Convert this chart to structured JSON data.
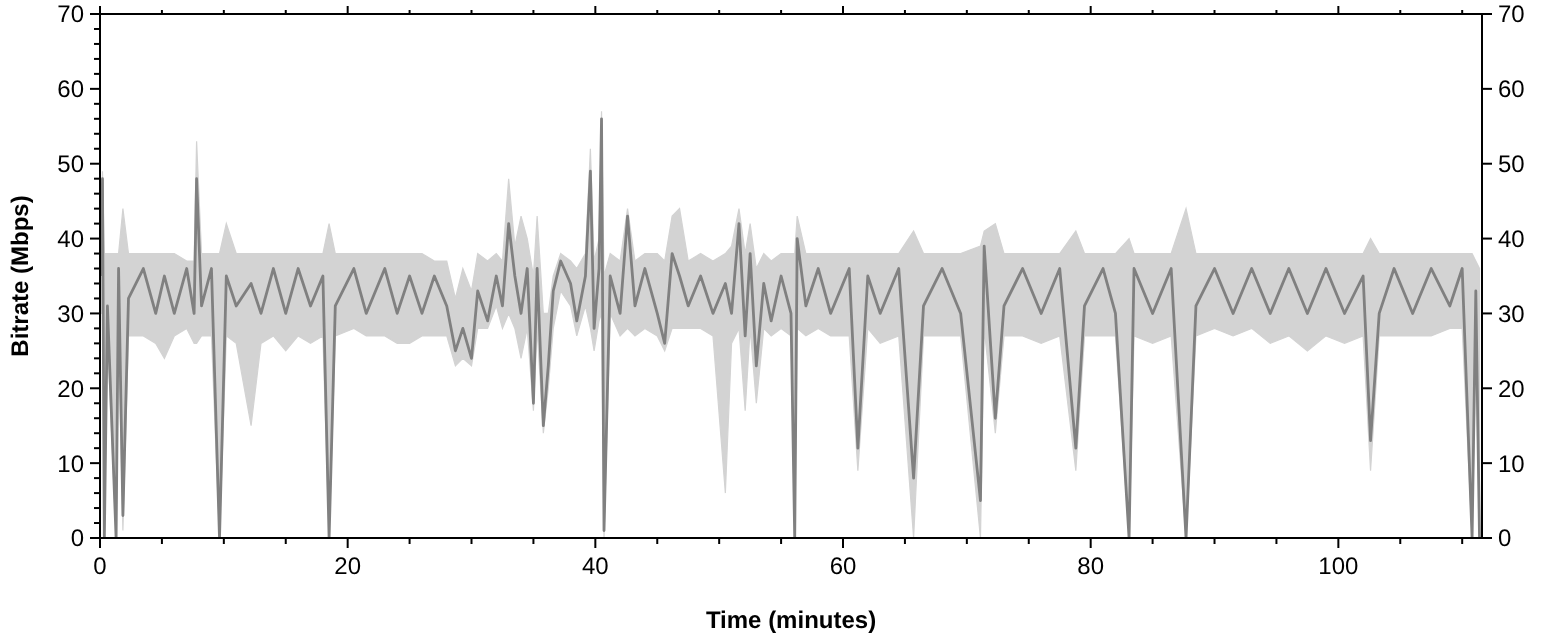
{
  "chart_data": {
    "type": "line",
    "xlabel": "Time (minutes)",
    "ylabel": "Bitrate (Mbps)",
    "xlim": [
      0,
      111.6
    ],
    "ylim": [
      0,
      70
    ],
    "y2lim": [
      0,
      70
    ],
    "xticks": [
      0,
      {
        "value": 5,
        "label": null
      },
      {
        "value": 10,
        "label": null
      },
      {
        "value": 15,
        "label": null
      },
      20,
      {
        "value": 25,
        "label": null
      },
      {
        "value": 30,
        "label": null
      },
      {
        "value": 35,
        "label": null
      },
      40,
      {
        "value": 45,
        "label": null
      },
      {
        "value": 50,
        "label": null
      },
      {
        "value": 55,
        "label": null
      },
      60,
      {
        "value": 65,
        "label": null
      },
      {
        "value": 70,
        "label": null
      },
      {
        "value": 75,
        "label": null
      },
      80,
      {
        "value": 85,
        "label": null
      },
      {
        "value": 90,
        "label": null
      },
      {
        "value": 95,
        "label": null
      },
      100,
      {
        "value": 105,
        "label": null
      },
      {
        "value": 110,
        "label": null
      }
    ],
    "yticks": [
      0,
      {
        "value": 2,
        "label": null
      },
      {
        "value": 4,
        "label": null
      },
      {
        "value": 6,
        "label": null
      },
      {
        "value": 8,
        "label": null
      },
      10,
      {
        "value": 12,
        "label": null
      },
      {
        "value": 14,
        "label": null
      },
      {
        "value": 16,
        "label": null
      },
      {
        "value": 18,
        "label": null
      },
      20,
      {
        "value": 22,
        "label": null
      },
      {
        "value": 24,
        "label": null
      },
      {
        "value": 26,
        "label": null
      },
      {
        "value": 28,
        "label": null
      },
      30,
      {
        "value": 32,
        "label": null
      },
      {
        "value": 34,
        "label": null
      },
      {
        "value": 36,
        "label": null
      },
      {
        "value": 38,
        "label": null
      },
      40,
      {
        "value": 42,
        "label": null
      },
      {
        "value": 44,
        "label": null
      },
      {
        "value": 46,
        "label": null
      },
      {
        "value": 48,
        "label": null
      },
      50,
      {
        "value": 52,
        "label": null
      },
      {
        "value": 54,
        "label": null
      },
      {
        "value": 56,
        "label": null
      },
      {
        "value": 58,
        "label": null
      },
      60,
      {
        "value": 62,
        "label": null
      },
      {
        "value": 64,
        "label": null
      },
      {
        "value": 66,
        "label": null
      },
      {
        "value": 68,
        "label": null
      },
      70
    ],
    "y2ticks": [
      0,
      10,
      20,
      30,
      40,
      50,
      60,
      70
    ],
    "grid": false,
    "marker": "none",
    "line_style": "solid",
    "series": [
      {
        "color": "#808080",
        "x": [
          0.1,
          0.2,
          0.35,
          0.6,
          1.3,
          1.5,
          1.85,
          2.3,
          3.5,
          4.5,
          5.2,
          6.0,
          7.0,
          7.6,
          7.8,
          8.2,
          9.0,
          9.65,
          10.2,
          11.0,
          12.2,
          13.0,
          14.0,
          15.0,
          16.0,
          17.0,
          18.0,
          18.5,
          19.0,
          20.5,
          21.5,
          23.0,
          24.0,
          25.0,
          26.0,
          27.0,
          28.0,
          28.7,
          29.3,
          30.0,
          30.5,
          31.3,
          32.0,
          32.5,
          33.0,
          33.5,
          34.0,
          34.5,
          35.0,
          35.3,
          35.8,
          36.2,
          36.6,
          37.2,
          38.0,
          38.5,
          39.2,
          39.6,
          39.9,
          40.3,
          40.5,
          40.7,
          41.2,
          42.0,
          42.6,
          43.2,
          44.0,
          45.0,
          45.6,
          46.2,
          46.8,
          47.5,
          48.5,
          49.5,
          50.5,
          51.0,
          51.6,
          52.1,
          52.5,
          53.0,
          53.6,
          54.2,
          55.0,
          55.8,
          56.1,
          56.3,
          57.0,
          58.0,
          59.0,
          60.5,
          61.2,
          62.0,
          63.0,
          64.5,
          65.7,
          66.5,
          68.0,
          69.5,
          71.1,
          71.4,
          72.3,
          73.0,
          74.5,
          76.0,
          77.5,
          78.8,
          79.5,
          81.0,
          82.0,
          83.1,
          83.5,
          85.0,
          86.5,
          87.7,
          88.5,
          90.0,
          91.5,
          93.0,
          94.5,
          96.0,
          97.5,
          99.0,
          100.5,
          102.0,
          102.6,
          103.3,
          104.5,
          106.0,
          107.5,
          109.0,
          110.0,
          110.8,
          111.1,
          111.4
        ],
        "values": [
          35,
          48,
          0,
          31,
          0,
          36,
          3,
          32,
          36,
          30,
          35,
          30,
          36,
          30,
          48,
          31,
          36,
          0,
          35,
          31,
          34,
          30,
          36,
          30,
          36,
          31,
          35,
          0,
          31,
          36,
          30,
          36,
          30,
          35,
          30,
          35,
          31,
          25,
          28,
          24,
          33,
          29,
          35,
          31,
          42,
          35,
          30,
          36,
          18,
          36,
          15,
          23,
          33,
          37,
          34,
          29,
          35,
          49,
          28,
          36,
          56,
          1,
          35,
          30,
          43,
          31,
          36,
          30,
          26,
          38,
          35,
          31,
          35,
          30,
          34,
          30,
          42,
          27,
          38,
          23,
          34,
          29,
          35,
          30,
          0,
          40,
          31,
          36,
          30,
          36,
          12,
          35,
          30,
          36,
          8,
          31,
          36,
          30,
          5,
          39,
          16,
          31,
          36,
          30,
          36,
          12,
          31,
          36,
          30,
          0,
          36,
          30,
          36,
          0,
          31,
          36,
          30,
          36,
          30,
          36,
          30,
          36,
          30,
          35,
          13,
          30,
          36,
          30,
          36,
          31,
          36,
          0,
          33,
          0
        ],
        "lower": [
          30,
          30,
          0,
          27,
          0,
          27,
          1,
          27,
          27,
          26,
          24,
          27,
          28,
          26,
          26,
          27,
          27,
          0,
          27,
          26,
          15,
          26,
          27,
          25,
          27,
          26,
          27,
          0,
          27,
          28,
          27,
          27,
          26,
          26,
          27,
          27,
          27,
          23,
          24,
          23,
          28,
          28,
          31,
          28,
          30,
          28,
          24,
          28,
          17,
          28,
          14,
          20,
          28,
          33,
          31,
          27,
          31,
          28,
          25,
          29,
          30,
          0,
          30,
          27,
          28,
          27,
          28,
          27,
          25,
          28,
          28,
          28,
          28,
          27,
          6,
          26,
          28,
          17,
          28,
          18,
          28,
          27,
          28,
          27,
          0,
          28,
          27,
          28,
          27,
          27,
          9,
          28,
          26,
          27,
          0,
          27,
          27,
          27,
          0,
          28,
          14,
          27,
          27,
          26,
          27,
          9,
          27,
          27,
          27,
          0,
          27,
          26,
          27,
          0,
          27,
          28,
          27,
          28,
          26,
          27,
          25,
          27,
          26,
          27,
          9,
          27,
          27,
          27,
          27,
          28,
          28,
          0,
          25,
          0
        ],
        "upper": [
          38,
          49,
          38,
          38,
          38,
          38,
          44,
          38,
          38,
          38,
          38,
          38,
          37,
          37,
          53,
          38,
          38,
          38,
          42,
          38,
          38,
          38,
          38,
          38,
          38,
          38,
          38,
          42,
          38,
          38,
          38,
          38,
          38,
          38,
          38,
          37,
          37,
          32,
          36,
          33,
          38,
          37,
          38,
          37,
          48,
          39,
          43,
          40,
          35,
          43,
          30,
          30,
          35,
          38,
          37,
          36,
          38,
          52,
          37,
          40,
          57,
          35,
          38,
          37,
          44,
          37,
          38,
          38,
          37,
          43,
          44,
          37,
          38,
          37,
          38,
          39,
          44,
          38,
          42,
          36,
          38,
          37,
          38,
          38,
          38,
          43,
          38,
          38,
          38,
          38,
          38,
          38,
          38,
          38,
          41,
          38,
          38,
          38,
          39,
          41,
          42,
          38,
          38,
          38,
          38,
          41,
          38,
          38,
          38,
          40,
          38,
          38,
          38,
          44,
          38,
          38,
          38,
          38,
          38,
          38,
          38,
          38,
          38,
          38,
          40,
          38,
          38,
          38,
          38,
          38,
          38,
          38,
          37,
          36
        ]
      }
    ]
  }
}
